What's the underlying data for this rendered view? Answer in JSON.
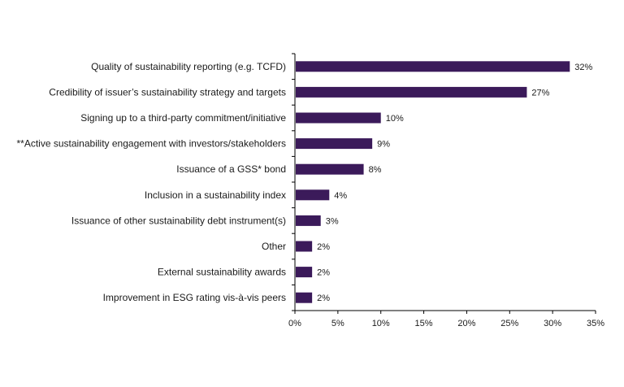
{
  "chart_data": {
    "type": "bar",
    "orientation": "horizontal",
    "title": "",
    "xlabel": "",
    "ylabel": "",
    "xlim": [
      0,
      35
    ],
    "grid": false,
    "categories": [
      "Quality of sustainability reporting (e.g. TCFD)",
      "Credibility of issuer’s sustainability strategy and targets",
      "Signing up to a third-party commitment/initiative",
      "**Active sustainability engagement with investors/stakeholders",
      "Issuance of a GSS* bond",
      "Inclusion in a sustainability index",
      "Issuance of other sustainability debt instrument(s)",
      "Other",
      "External sustainability awards",
      "Improvement in ESG rating vis-à-vis peers"
    ],
    "values": [
      32,
      27,
      10,
      9,
      8,
      4,
      3,
      2,
      2,
      2
    ],
    "value_labels": [
      "32%",
      "27%",
      "10%",
      "9%",
      "8%",
      "4%",
      "3%",
      "2%",
      "2%",
      "2%"
    ],
    "x_ticks": [
      0,
      5,
      10,
      15,
      20,
      25,
      30,
      35
    ],
    "x_tick_labels": [
      "0%",
      "5%",
      "10%",
      "15%",
      "20%",
      "25%",
      "30%",
      "35%"
    ],
    "bar_color": "#3b1a5a",
    "axis_color": "#000000"
  }
}
